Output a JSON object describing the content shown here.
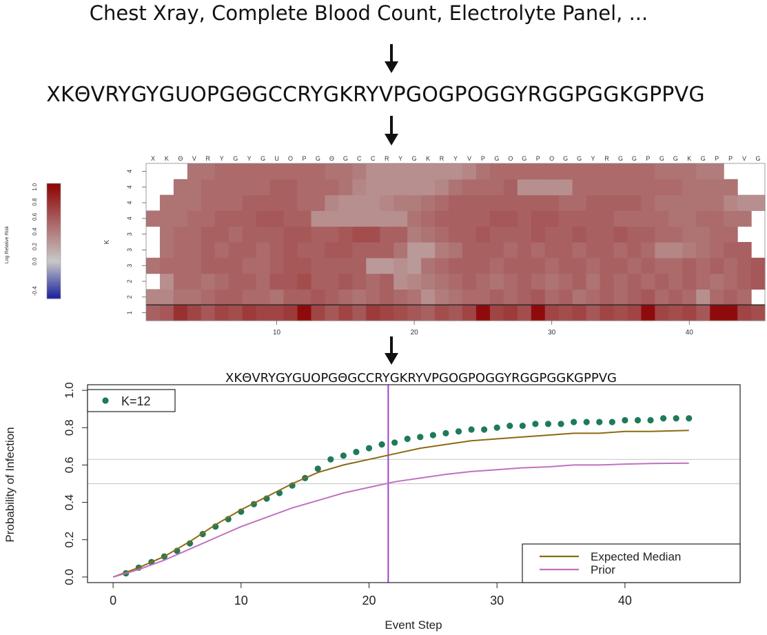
{
  "top_text": "Chest Xray, Complete Blood Count, Electrolyte Panel, ...",
  "sequence": "XKΘVRYGYGUOPGΘGCCRYGKRYVPGOGPOGGYRGGPGGKGPPVG",
  "colors": {
    "heatmap_low": "#1a1f9c",
    "heatmap_mid": "#c8c8c8",
    "heatmap_high": "#8f0b0b",
    "dots": "#1f7a5a",
    "expected_median": "#8a6a10",
    "prior": "#c070c0",
    "vline": "#a040d0",
    "hline": "#cccccc"
  },
  "chart_data": [
    {
      "type": "heatmap",
      "title": "",
      "x_tick_labels": [
        "X",
        "K",
        "Θ",
        "V",
        "R",
        "Y",
        "G",
        "Y",
        "G",
        "U",
        "O",
        "P",
        "G",
        "Θ",
        "G",
        "C",
        "C",
        "R",
        "Y",
        "G",
        "K",
        "R",
        "Y",
        "V",
        "P",
        "G",
        "O",
        "G",
        "P",
        "O",
        "G",
        "G",
        "Y",
        "R",
        "G",
        "G",
        "P",
        "G",
        "G",
        "K",
        "G",
        "P",
        "P",
        "V",
        "G"
      ],
      "x_axis_ticks": [
        10,
        20,
        30,
        40
      ],
      "y_tick_labels": [
        "1",
        "2",
        "2",
        "3",
        "3",
        "3",
        "4",
        "4",
        "4",
        "4"
      ],
      "ylabel": "K",
      "colorbar": {
        "label": "Log Relative Risk",
        "ticks": [
          "-0.4",
          "0.0",
          "0.2",
          "0.4",
          "0.6",
          "0.8",
          "1.0"
        ],
        "range": [
          -0.5,
          1.05
        ]
      },
      "rows": [
        {
          "k": 1,
          "cells": [
            0.55,
            0.6,
            0.8,
            0.7,
            0.6,
            0.7,
            0.65,
            0.75,
            0.7,
            0.7,
            0.75,
            1.0,
            0.7,
            0.6,
            0.7,
            0.6,
            0.75,
            0.7,
            0.65,
            0.6,
            0.55,
            0.65,
            0.6,
            0.7,
            1.0,
            0.7,
            0.75,
            0.65,
            1.0,
            0.7,
            0.65,
            0.7,
            0.6,
            0.7,
            0.65,
            0.7,
            1.0,
            0.7,
            0.65,
            0.7,
            0.6,
            1.0,
            1.0,
            0.7,
            0.65
          ]
        },
        {
          "k": 2,
          "cells": [
            0.35,
            0.35,
            0.45,
            0.45,
            0.5,
            0.55,
            0.55,
            0.5,
            0.5,
            0.45,
            0.55,
            0.55,
            0.6,
            0.55,
            0.5,
            0.45,
            0.5,
            0.55,
            0.5,
            0.45,
            0.3,
            0.4,
            0.45,
            0.5,
            0.5,
            0.55,
            0.5,
            0.55,
            0.6,
            0.5,
            0.55,
            0.45,
            0.5,
            0.55,
            0.5,
            0.55,
            0.6,
            0.5,
            0.55,
            0.5,
            0.3,
            0.5,
            0.55,
            0.5,
            null
          ]
        },
        {
          "k": 2,
          "cells": [
            null,
            0.3,
            0.5,
            0.5,
            0.45,
            0.5,
            0.55,
            0.55,
            0.5,
            0.6,
            0.6,
            0.65,
            0.55,
            0.55,
            0.6,
            0.55,
            0.5,
            0.55,
            0.3,
            0.35,
            0.4,
            0.45,
            0.5,
            0.55,
            0.5,
            0.45,
            0.5,
            0.55,
            0.5,
            0.45,
            0.5,
            0.55,
            0.45,
            0.55,
            0.5,
            0.55,
            0.5,
            0.55,
            0.5,
            0.55,
            0.5,
            0.45,
            0.5,
            0.55,
            0.6
          ]
        },
        {
          "k": 3,
          "cells": [
            0.45,
            0.5,
            0.5,
            0.5,
            0.55,
            0.55,
            0.55,
            0.5,
            0.5,
            0.55,
            0.6,
            0.6,
            0.55,
            0.55,
            0.55,
            0.55,
            0.25,
            0.25,
            0.3,
            0.25,
            0.45,
            0.5,
            0.55,
            0.55,
            0.55,
            0.5,
            0.55,
            0.55,
            0.55,
            0.5,
            0.55,
            0.55,
            0.5,
            0.55,
            0.55,
            0.5,
            0.55,
            0.5,
            0.5,
            0.55,
            0.5,
            0.55,
            0.5,
            0.55,
            0.6
          ]
        },
        {
          "k": 3,
          "cells": [
            null,
            0.45,
            0.5,
            0.5,
            0.55,
            0.5,
            0.55,
            0.55,
            0.5,
            0.55,
            0.6,
            0.55,
            0.55,
            0.6,
            0.6,
            0.55,
            0.55,
            0.55,
            0.45,
            0.25,
            0.25,
            0.4,
            0.45,
            0.55,
            0.55,
            0.55,
            0.5,
            0.55,
            0.5,
            0.55,
            0.55,
            0.5,
            0.55,
            0.55,
            0.5,
            0.55,
            0.5,
            0.35,
            0.35,
            0.4,
            0.45,
            0.5,
            0.55,
            0.55,
            null
          ]
        },
        {
          "k": 3,
          "cells": [
            null,
            0.45,
            0.5,
            0.5,
            0.55,
            0.55,
            0.5,
            0.55,
            0.55,
            0.55,
            0.6,
            0.6,
            0.55,
            0.55,
            0.6,
            0.65,
            0.65,
            0.55,
            0.55,
            0.4,
            0.45,
            0.5,
            0.55,
            0.55,
            0.6,
            0.55,
            0.55,
            0.55,
            0.6,
            0.55,
            0.55,
            0.6,
            0.55,
            0.55,
            0.6,
            0.55,
            0.55,
            0.5,
            0.5,
            0.45,
            0.45,
            0.5,
            0.5,
            null,
            null
          ]
        },
        {
          "k": 4,
          "cells": [
            0.45,
            0.45,
            0.45,
            0.5,
            0.5,
            0.55,
            0.55,
            0.55,
            0.6,
            0.6,
            0.55,
            0.55,
            0.3,
            0.3,
            0.3,
            0.3,
            0.3,
            0.3,
            0.3,
            0.45,
            0.5,
            0.55,
            0.55,
            0.55,
            0.55,
            0.6,
            0.6,
            0.55,
            0.6,
            0.6,
            0.55,
            0.55,
            0.55,
            0.55,
            0.5,
            0.5,
            0.5,
            0.5,
            0.45,
            0.45,
            0.5,
            0.5,
            0.45,
            0.45,
            null
          ]
        },
        {
          "k": 4,
          "cells": [
            null,
            0.45,
            0.45,
            0.45,
            0.5,
            0.5,
            0.5,
            0.55,
            0.55,
            0.55,
            0.55,
            0.5,
            0.5,
            0.35,
            0.3,
            0.3,
            0.3,
            0.35,
            0.4,
            0.4,
            0.45,
            0.5,
            0.55,
            0.55,
            0.55,
            0.55,
            0.55,
            0.55,
            0.55,
            0.55,
            0.5,
            0.5,
            0.55,
            0.55,
            0.55,
            0.55,
            0.5,
            0.45,
            0.45,
            0.45,
            0.45,
            0.45,
            0.35,
            0.3,
            0.3
          ]
        },
        {
          "k": 4,
          "cells": [
            null,
            null,
            0.45,
            0.45,
            0.5,
            0.5,
            0.5,
            0.5,
            0.5,
            0.55,
            0.55,
            0.5,
            0.5,
            0.5,
            0.45,
            0.35,
            0.3,
            0.3,
            0.3,
            0.3,
            0.3,
            0.35,
            0.45,
            0.5,
            0.5,
            0.5,
            0.55,
            0.3,
            0.3,
            0.3,
            0.3,
            0.5,
            0.5,
            0.5,
            0.5,
            0.5,
            0.5,
            0.5,
            0.5,
            0.45,
            0.45,
            0.45,
            0.45,
            null,
            null
          ]
        },
        {
          "k": 4,
          "cells": [
            null,
            null,
            null,
            0.45,
            0.45,
            0.5,
            0.5,
            0.5,
            0.5,
            0.5,
            0.5,
            0.5,
            0.5,
            0.45,
            0.45,
            0.4,
            0.3,
            0.3,
            0.3,
            0.3,
            0.3,
            0.3,
            0.3,
            0.35,
            0.45,
            0.5,
            0.5,
            0.5,
            0.5,
            0.5,
            0.5,
            0.5,
            0.5,
            0.5,
            0.5,
            0.5,
            0.5,
            0.45,
            0.45,
            0.45,
            0.4,
            0.4,
            null,
            null,
            null
          ]
        }
      ]
    },
    {
      "type": "line",
      "title": "",
      "xlabel": "Event Step",
      "ylabel": "Probability of Infection",
      "xlim": [
        -2,
        49
      ],
      "ylim": [
        -0.03,
        1.03
      ],
      "x_ticks": [
        0,
        10,
        20,
        30,
        40
      ],
      "y_ticks": [
        "0.0",
        "0.2",
        "0.4",
        "0.6",
        "0.8",
        "1.0"
      ],
      "vline_x": 21.5,
      "hlines_y": [
        0.5,
        0.63
      ],
      "legend_top": {
        "position": "top-left",
        "label": "K=12"
      },
      "legend_bottom": {
        "position": "bottom-right",
        "entries": [
          "Expected Median",
          "Prior"
        ]
      },
      "series": [
        {
          "name": "K=12",
          "style": "dots",
          "x": [
            1,
            2,
            3,
            4,
            5,
            6,
            7,
            8,
            9,
            10,
            11,
            12,
            13,
            14,
            15,
            16,
            17,
            18,
            19,
            20,
            21,
            22,
            23,
            24,
            25,
            26,
            27,
            28,
            29,
            30,
            31,
            32,
            33,
            34,
            35,
            36,
            37,
            38,
            39,
            40,
            41,
            42,
            43,
            44,
            45
          ],
          "y": [
            0.02,
            0.05,
            0.08,
            0.11,
            0.14,
            0.18,
            0.23,
            0.27,
            0.31,
            0.35,
            0.39,
            0.42,
            0.45,
            0.49,
            0.53,
            0.58,
            0.63,
            0.65,
            0.67,
            0.69,
            0.71,
            0.72,
            0.74,
            0.75,
            0.76,
            0.77,
            0.78,
            0.79,
            0.79,
            0.8,
            0.81,
            0.81,
            0.82,
            0.82,
            0.82,
            0.83,
            0.83,
            0.83,
            0.83,
            0.84,
            0.84,
            0.84,
            0.85,
            0.85,
            0.85
          ]
        },
        {
          "name": "Expected Median",
          "style": "line",
          "x": [
            0,
            2,
            4,
            6,
            8,
            10,
            12,
            14,
            16,
            18,
            20,
            22,
            24,
            26,
            28,
            30,
            32,
            34,
            36,
            38,
            40,
            42,
            45
          ],
          "y": [
            0.0,
            0.05,
            0.11,
            0.19,
            0.28,
            0.36,
            0.43,
            0.5,
            0.56,
            0.6,
            0.63,
            0.66,
            0.69,
            0.71,
            0.73,
            0.74,
            0.75,
            0.76,
            0.77,
            0.77,
            0.78,
            0.78,
            0.785
          ]
        },
        {
          "name": "Prior",
          "style": "line",
          "x": [
            0,
            2,
            4,
            6,
            8,
            10,
            12,
            14,
            16,
            18,
            20,
            22,
            24,
            26,
            28,
            30,
            32,
            34,
            36,
            38,
            40,
            42,
            45
          ],
          "y": [
            0.0,
            0.04,
            0.09,
            0.15,
            0.21,
            0.27,
            0.32,
            0.37,
            0.41,
            0.45,
            0.48,
            0.51,
            0.53,
            0.55,
            0.565,
            0.575,
            0.585,
            0.59,
            0.6,
            0.6,
            0.605,
            0.608,
            0.61
          ]
        }
      ]
    }
  ]
}
